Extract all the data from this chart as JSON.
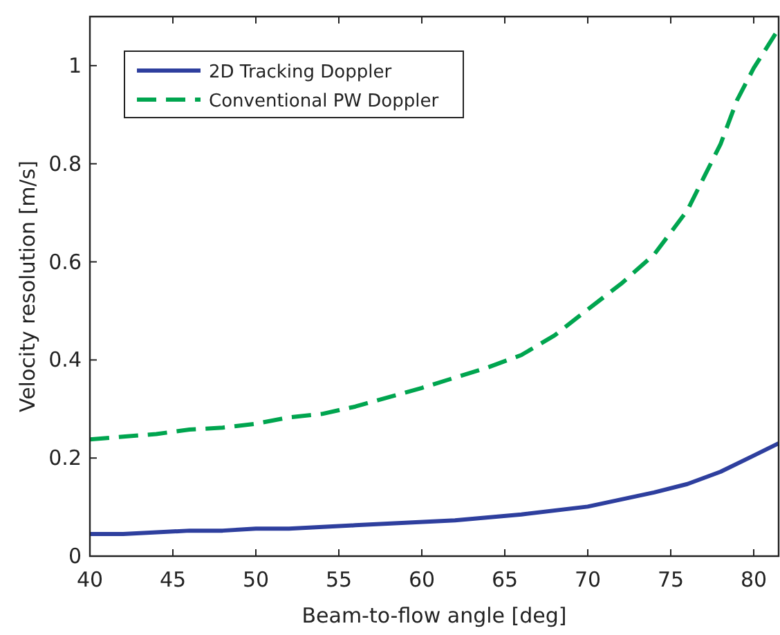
{
  "chart_data": {
    "type": "line",
    "xlabel": "Beam-to-flow angle [deg]",
    "ylabel": "Velocity resolution [m/s]",
    "xlim": [
      40,
      81.5
    ],
    "xticks": [
      40,
      45,
      50,
      55,
      60,
      65,
      70,
      75,
      80
    ],
    "ylim": [
      0,
      1.1
    ],
    "yticks": [
      0,
      0.2,
      0.4,
      0.6,
      0.8,
      1
    ],
    "grid": false,
    "legend": "top left",
    "series": [
      {
        "name": "2D Tracking Doppler",
        "color": "#2e3f9e",
        "line_style": "solid",
        "x": [
          40,
          42,
          46,
          48,
          50,
          52,
          56,
          62,
          66,
          70,
          74,
          76,
          78,
          80,
          81.5
        ],
        "values": [
          0.045,
          0.045,
          0.052,
          0.052,
          0.056,
          0.056,
          0.063,
          0.073,
          0.085,
          0.101,
          0.13,
          0.147,
          0.172,
          0.205,
          0.23
        ]
      },
      {
        "name": "Conventional PW Doppler",
        "color": "#00a54f",
        "line_style": "dashed",
        "x": [
          40,
          44,
          46,
          48,
          50,
          52,
          54,
          56,
          60,
          64,
          66,
          68,
          70,
          72,
          74,
          76,
          78,
          79,
          80,
          81.5
        ],
        "values": [
          0.238,
          0.249,
          0.258,
          0.262,
          0.27,
          0.283,
          0.29,
          0.305,
          0.343,
          0.385,
          0.41,
          0.45,
          0.503,
          0.555,
          0.615,
          0.705,
          0.84,
          0.93,
          0.995,
          1.075
        ]
      }
    ]
  }
}
